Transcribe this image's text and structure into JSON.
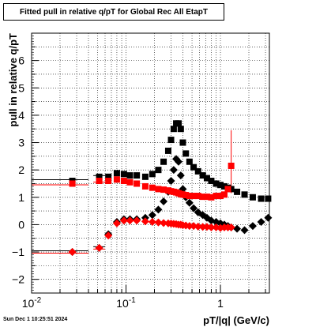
{
  "title": "Fitted pull in relative q/pT for Global Rec All EtapT",
  "footer_timestamp": "Sun Dec  1 10:25:51 2024",
  "chart_data": {
    "type": "scatter",
    "title": "Fitted pull in relative q/pT for Global Rec All EtapT",
    "xlabel": "pT/|q| (GeV/c)",
    "ylabel": "pull in relative q/pT",
    "xscale": "log",
    "xlim": [
      0.01,
      3.3
    ],
    "ylim": [
      -2.5,
      7.0
    ],
    "grid": true,
    "x_tick_labels": [
      "10^-2",
      "10^-1",
      "1"
    ],
    "y_tick_labels": [
      "−2",
      "−1",
      "0",
      "1",
      "2",
      "3",
      "4",
      "5",
      "6"
    ],
    "colors": {
      "black_series": "#000000",
      "red_series": "#ff0000"
    },
    "series": [
      {
        "marker": "square",
        "color": "#000000",
        "x": [
          0.027,
          0.052,
          0.065,
          0.08,
          0.095,
          0.11,
          0.13,
          0.16,
          0.19,
          0.22,
          0.25,
          0.28,
          0.3,
          0.32,
          0.34,
          0.36,
          0.38,
          0.4,
          0.43,
          0.47,
          0.52,
          0.58,
          0.65,
          0.72,
          0.8,
          0.9,
          1.0,
          1.1,
          1.2,
          1.3,
          1.5,
          1.8,
          2.2,
          2.7,
          3.2
        ],
        "y": [
          1.6,
          1.75,
          1.75,
          1.88,
          1.85,
          1.8,
          1.8,
          1.75,
          1.85,
          2.0,
          2.3,
          2.7,
          3.1,
          3.5,
          3.7,
          3.7,
          3.5,
          3.0,
          2.6,
          2.3,
          2.1,
          1.95,
          1.8,
          1.7,
          1.6,
          1.5,
          1.45,
          1.4,
          1.35,
          1.3,
          1.2,
          1.1,
          1.0,
          0.95,
          0.95
        ]
      },
      {
        "marker": "diamond",
        "color": "#000000",
        "x": [
          0.027,
          0.052,
          0.065,
          0.08,
          0.095,
          0.11,
          0.13,
          0.16,
          0.19,
          0.22,
          0.25,
          0.28,
          0.3,
          0.32,
          0.34,
          0.36,
          0.38,
          0.4,
          0.43,
          0.47,
          0.52,
          0.58,
          0.65,
          0.72,
          0.8,
          0.9,
          1.0,
          1.1,
          1.2,
          1.3,
          1.5,
          1.8,
          2.2,
          2.7,
          3.2
        ],
        "y": [
          -1.0,
          -0.85,
          -0.35,
          0.1,
          0.2,
          0.2,
          0.2,
          0.25,
          0.35,
          0.55,
          0.85,
          1.2,
          1.6,
          2.0,
          2.4,
          2.3,
          1.8,
          1.3,
          1.0,
          0.8,
          0.6,
          0.45,
          0.35,
          0.25,
          0.15,
          0.1,
          0.05,
          0.0,
          -0.05,
          -0.1,
          -0.15,
          -0.2,
          -0.05,
          0.1,
          0.25
        ]
      },
      {
        "marker": "square",
        "color": "#ff0000",
        "x": [
          0.027,
          0.052,
          0.065,
          0.08,
          0.095,
          0.11,
          0.13,
          0.16,
          0.19,
          0.22,
          0.25,
          0.28,
          0.3,
          0.32,
          0.34,
          0.36,
          0.38,
          0.4,
          0.43,
          0.47,
          0.52,
          0.58,
          0.65,
          0.72,
          0.8,
          0.9,
          1.0,
          1.1,
          1.2,
          1.3
        ],
        "y": [
          1.5,
          1.6,
          1.6,
          1.65,
          1.6,
          1.55,
          1.5,
          1.4,
          1.35,
          1.3,
          1.28,
          1.25,
          1.22,
          1.2,
          1.18,
          1.15,
          1.12,
          1.1,
          1.08,
          1.05,
          1.05,
          1.05,
          1.02,
          1.02,
          1.0,
          1.05,
          1.05,
          1.1,
          1.3,
          2.15
        ]
      },
      {
        "marker": "diamond",
        "color": "#ff0000",
        "x": [
          0.027,
          0.052,
          0.065,
          0.08,
          0.095,
          0.11,
          0.13,
          0.16,
          0.19,
          0.22,
          0.25,
          0.28,
          0.3,
          0.32,
          0.34,
          0.36,
          0.38,
          0.4,
          0.43,
          0.47,
          0.52,
          0.58,
          0.65,
          0.72,
          0.8,
          0.9,
          1.0,
          1.1,
          1.2,
          1.3
        ],
        "y": [
          -1.0,
          -0.85,
          -0.4,
          0.05,
          0.15,
          0.15,
          0.15,
          0.12,
          0.1,
          0.08,
          0.06,
          0.05,
          0.04,
          0.03,
          0.02,
          0.0,
          0.0,
          -0.02,
          -0.03,
          -0.05,
          -0.05,
          -0.07,
          -0.08,
          -0.08,
          -0.1,
          -0.1,
          -0.12,
          -0.1,
          -0.1,
          -0.1
        ]
      }
    ]
  }
}
